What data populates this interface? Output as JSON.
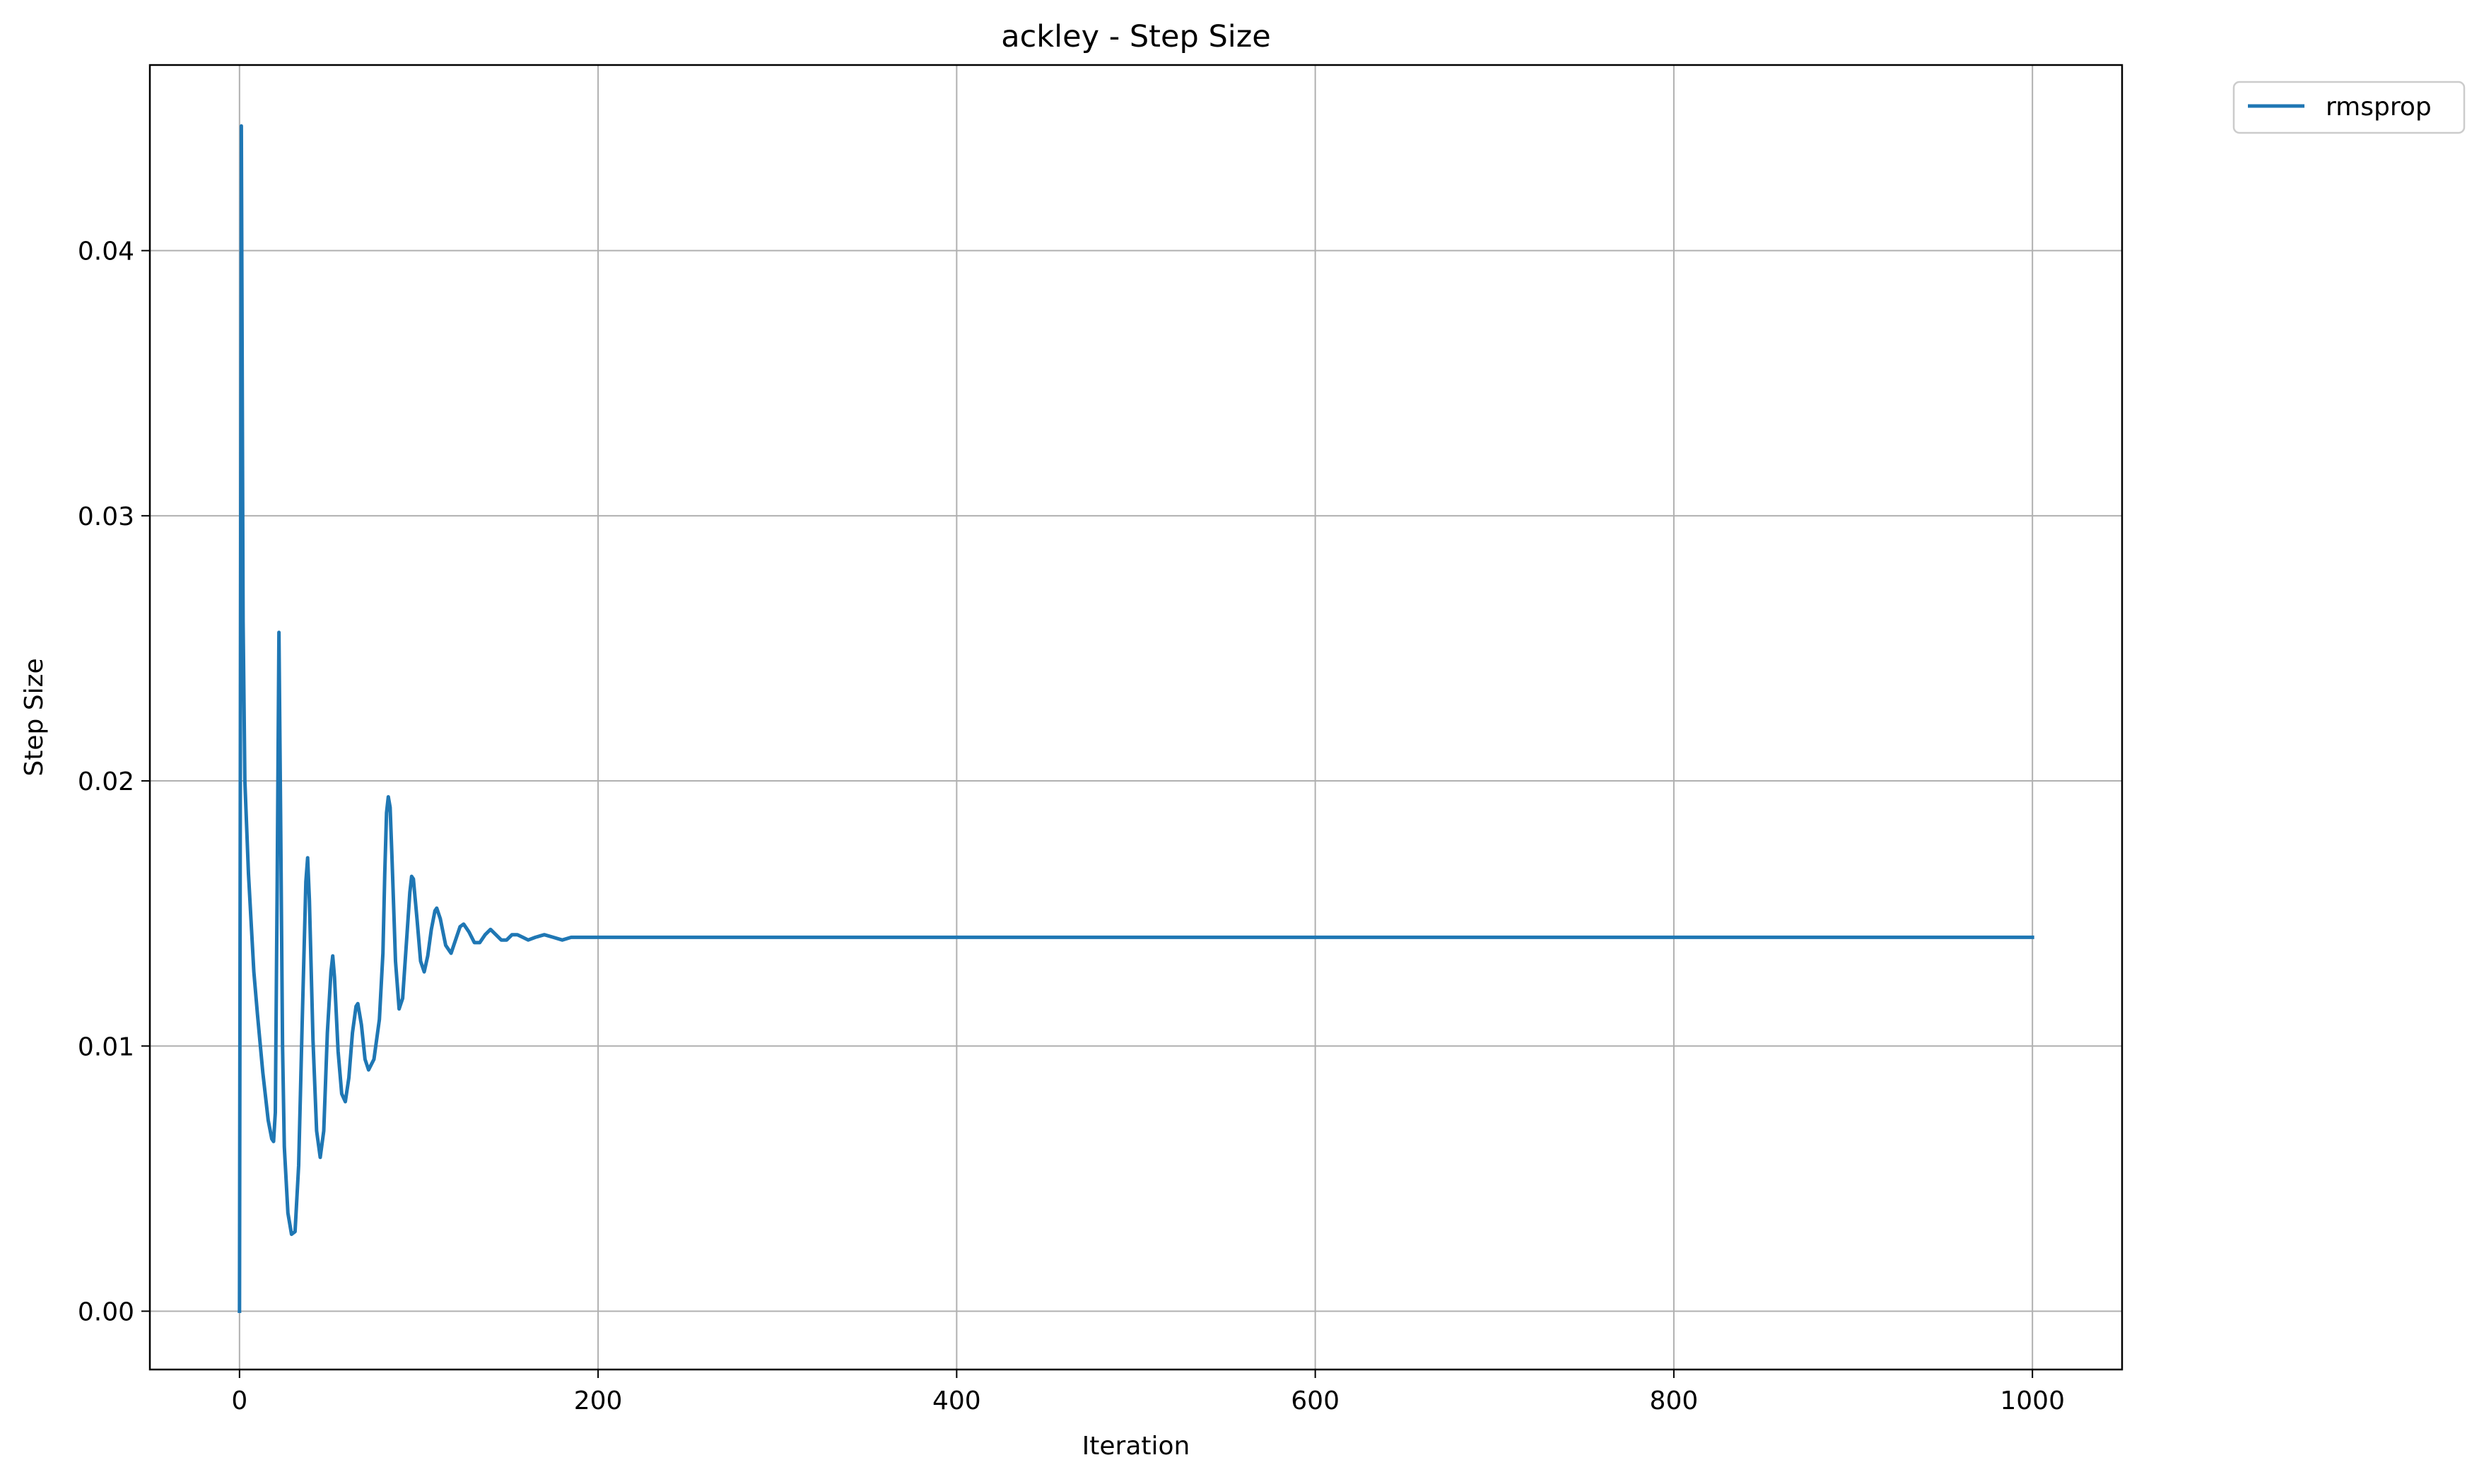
{
  "chart_data": {
    "type": "line",
    "title": "ackley - Step Size",
    "xlabel": "Iteration",
    "ylabel": "Step Size",
    "xlim": [
      -50,
      1050
    ],
    "ylim": [
      -0.0022,
      0.047
    ],
    "xticks": [
      0,
      200,
      400,
      600,
      800,
      1000
    ],
    "xtick_labels": [
      "0",
      "200",
      "400",
      "600",
      "800",
      "1000"
    ],
    "yticks": [
      0.0,
      0.01,
      0.02,
      0.03,
      0.04
    ],
    "ytick_labels": [
      "0.00",
      "0.01",
      "0.02",
      "0.03",
      "0.04"
    ],
    "grid": true,
    "legend_position": "outside upper right",
    "series": [
      {
        "name": "rmsprop",
        "color": "#1f77b4",
        "x": [
          0,
          1,
          2,
          3,
          5,
          8,
          10,
          13,
          16,
          18,
          19,
          20,
          21,
          22,
          23,
          24,
          25,
          27,
          29,
          31,
          33,
          35,
          37,
          38,
          39,
          41,
          43,
          45,
          47,
          49,
          51,
          52,
          53,
          55,
          57,
          59,
          61,
          63,
          65,
          66,
          68,
          70,
          72,
          75,
          78,
          80,
          81,
          82,
          83,
          84,
          85,
          87,
          89,
          91,
          93,
          95,
          96,
          97,
          99,
          101,
          103,
          105,
          107,
          109,
          110,
          112,
          115,
          118,
          121,
          123,
          125,
          128,
          131,
          134,
          137,
          140,
          143,
          146,
          149,
          152,
          155,
          158,
          161,
          165,
          170,
          175,
          180,
          185,
          190,
          195,
          200,
          210,
          220,
          250,
          300,
          400,
          500,
          600,
          700,
          800,
          900,
          1000
        ],
        "y": [
          0.0,
          0.0447,
          0.026,
          0.02,
          0.0165,
          0.0128,
          0.0112,
          0.009,
          0.0072,
          0.0065,
          0.0064,
          0.0075,
          0.016,
          0.0256,
          0.018,
          0.01,
          0.0062,
          0.0037,
          0.0029,
          0.003,
          0.0055,
          0.011,
          0.0162,
          0.0171,
          0.0155,
          0.0102,
          0.0068,
          0.0058,
          0.0068,
          0.0105,
          0.0128,
          0.0134,
          0.0126,
          0.0098,
          0.0082,
          0.0079,
          0.0088,
          0.0105,
          0.0115,
          0.0116,
          0.0108,
          0.0095,
          0.0091,
          0.0095,
          0.011,
          0.0135,
          0.0165,
          0.0188,
          0.0194,
          0.019,
          0.0172,
          0.0132,
          0.0114,
          0.0118,
          0.0138,
          0.0158,
          0.0164,
          0.0163,
          0.0148,
          0.0132,
          0.0128,
          0.0134,
          0.0144,
          0.0151,
          0.0152,
          0.0148,
          0.0138,
          0.0135,
          0.0141,
          0.0145,
          0.0146,
          0.0143,
          0.0139,
          0.0139,
          0.0142,
          0.0144,
          0.0142,
          0.014,
          0.014,
          0.0142,
          0.0142,
          0.0141,
          0.014,
          0.0141,
          0.0142,
          0.0141,
          0.014,
          0.0141,
          0.0141,
          0.0141,
          0.0141,
          0.0141,
          0.0141,
          0.0141,
          0.0141,
          0.0141,
          0.0141,
          0.0141,
          0.0141,
          0.0141,
          0.0141,
          0.0141
        ]
      }
    ]
  }
}
